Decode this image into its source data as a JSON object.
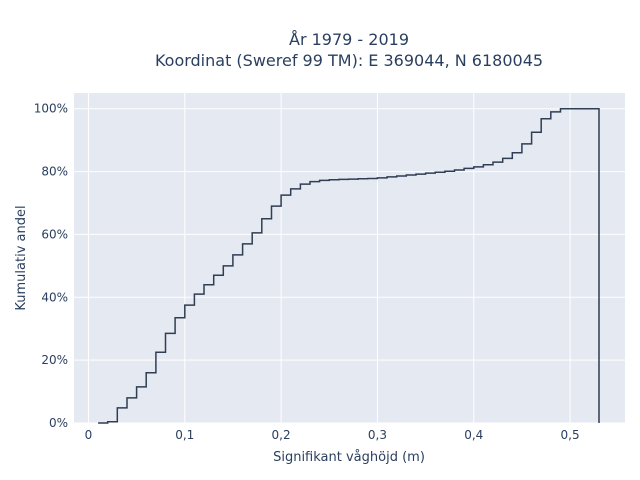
{
  "chart_data": {
    "type": "line",
    "subtype": "empirical-cdf-step",
    "title_line1": "År 1979 - 2019",
    "title_line2": "Koordinat (Sweref 99 TM): E 369044, N 6180045",
    "xlabel": "Signifikant våghöjd (m)",
    "ylabel": "Kumulativ andel",
    "xlim": [
      -0.015,
      0.557
    ],
    "ylim": [
      0,
      1.05
    ],
    "x_ticks": [
      0,
      0.1,
      0.2,
      0.3,
      0.4,
      0.5
    ],
    "x_tick_labels": [
      "0",
      "0,1",
      "0,2",
      "0,3",
      "0,4",
      "0,5"
    ],
    "y_ticks": [
      0,
      0.2,
      0.4,
      0.6,
      0.8,
      1.0
    ],
    "y_tick_labels": [
      "0%",
      "20%",
      "40%",
      "60%",
      "80%",
      "100%"
    ],
    "grid": true,
    "colors": {
      "plot_bg": "#e5e9f2",
      "grid": "#ffffff",
      "line": "#2f3e53",
      "text": "#2a3f5f"
    },
    "series": [
      {
        "x": [
          0.01,
          0.02,
          0.03,
          0.04,
          0.05,
          0.06,
          0.07,
          0.08,
          0.09,
          0.1,
          0.11,
          0.12,
          0.13,
          0.14,
          0.15,
          0.16,
          0.17,
          0.18,
          0.19,
          0.2,
          0.21,
          0.22,
          0.23,
          0.24,
          0.25,
          0.26,
          0.27,
          0.28,
          0.29,
          0.3,
          0.31,
          0.32,
          0.33,
          0.34,
          0.35,
          0.36,
          0.37,
          0.38,
          0.39,
          0.4,
          0.41,
          0.42,
          0.43,
          0.44,
          0.45,
          0.46,
          0.47,
          0.48,
          0.49,
          0.5,
          0.53
        ],
        "y": [
          0.0,
          0.004,
          0.048,
          0.08,
          0.115,
          0.16,
          0.225,
          0.285,
          0.335,
          0.375,
          0.41,
          0.44,
          0.47,
          0.5,
          0.535,
          0.57,
          0.605,
          0.65,
          0.69,
          0.725,
          0.745,
          0.76,
          0.768,
          0.772,
          0.774,
          0.775,
          0.776,
          0.777,
          0.778,
          0.78,
          0.783,
          0.786,
          0.789,
          0.792,
          0.795,
          0.798,
          0.801,
          0.805,
          0.81,
          0.815,
          0.822,
          0.83,
          0.842,
          0.86,
          0.888,
          0.925,
          0.968,
          0.99,
          1.0,
          1.0,
          0.0
        ]
      }
    ]
  }
}
